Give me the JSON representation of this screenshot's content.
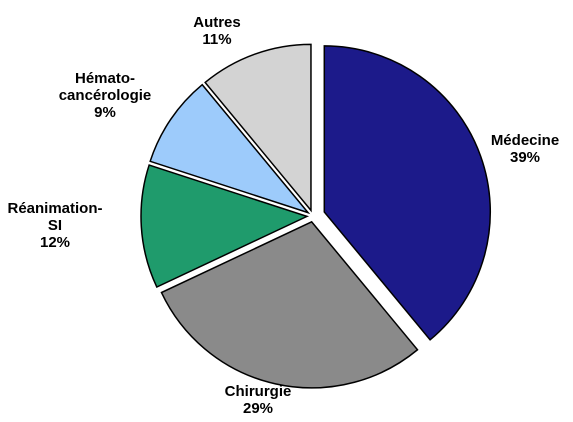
{
  "chart_data": {
    "type": "pie",
    "categories": [
      "Médecine",
      "Chirurgie",
      "Réanimation-SI",
      "Hémato-cancérologie",
      "Autres"
    ],
    "values": [
      39,
      29,
      12,
      9,
      11
    ],
    "value_labels": [
      "39%",
      "29%",
      "12%",
      "9%",
      "11%"
    ],
    "colors": [
      "#1c1a8a",
      "#8a8a8a",
      "#1f9b6c",
      "#9dcbfb",
      "#d3d3d3"
    ]
  }
}
